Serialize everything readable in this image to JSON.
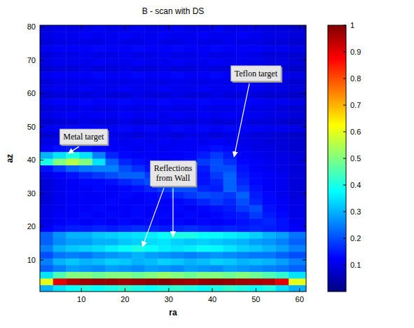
{
  "chart_data": {
    "type": "heatmap",
    "title": "B - scan with DS",
    "x_label": "ra",
    "y_label": "az",
    "xlim": [
      0.5,
      61.5
    ],
    "ylim": [
      0.5,
      80.5
    ],
    "xticks": [
      10,
      20,
      30,
      40,
      50,
      60
    ],
    "yticks": [
      10,
      20,
      30,
      40,
      50,
      60,
      70,
      80
    ],
    "x_edges": [
      0.5,
      3.5,
      6.5,
      9.5,
      12.5,
      15.5,
      18.5,
      21.5,
      24.5,
      27.5,
      30.5,
      33.5,
      36.5,
      39.5,
      42.5,
      45.5,
      48.5,
      51.5,
      54.5,
      57.5,
      61.5
    ],
    "y_edges": [
      0.5,
      2.5,
      4.5,
      6.5,
      8.5,
      10.5,
      12.5,
      14.5,
      16.5,
      18.5,
      20.5,
      22.5,
      24.5,
      26.5,
      28.5,
      30.5,
      32.5,
      34.5,
      36.5,
      38.5,
      40.5,
      42.5,
      44.5,
      46.5,
      48.5,
      50.5,
      52.5,
      54.5,
      56.5,
      58.5,
      60.5,
      62.5,
      64.5,
      66.5,
      68.5,
      70.5,
      72.5,
      74.5,
      76.5,
      78.5,
      80.5
    ],
    "cells": [
      [
        0.3,
        0.35,
        0.38,
        0.4,
        0.38,
        0.4,
        0.42,
        0.4,
        0.38,
        0.4,
        0.42,
        0.4,
        0.38,
        0.4,
        0.42,
        0.4,
        0.38,
        0.4,
        0.35,
        0.3
      ],
      [
        0.6,
        0.9,
        0.95,
        0.97,
        0.98,
        0.98,
        0.97,
        0.98,
        0.99,
        1,
        0.98,
        0.97,
        0.98,
        0.99,
        0.98,
        0.97,
        0.96,
        0.95,
        0.9,
        0.6
      ],
      [
        0.35,
        0.45,
        0.5,
        0.5,
        0.48,
        0.5,
        0.5,
        0.48,
        0.5,
        0.52,
        0.5,
        0.48,
        0.5,
        0.5,
        0.48,
        0.5,
        0.48,
        0.45,
        0.42,
        0.35
      ],
      [
        0.22,
        0.25,
        0.28,
        0.27,
        0.26,
        0.28,
        0.27,
        0.26,
        0.28,
        0.27,
        0.26,
        0.28,
        0.27,
        0.26,
        0.28,
        0.27,
        0.26,
        0.25,
        0.24,
        0.22
      ],
      [
        0.25,
        0.3,
        0.32,
        0.3,
        0.31,
        0.33,
        0.32,
        0.3,
        0.31,
        0.33,
        0.32,
        0.3,
        0.31,
        0.33,
        0.32,
        0.3,
        0.31,
        0.3,
        0.28,
        0.25
      ],
      [
        0.2,
        0.24,
        0.25,
        0.24,
        0.26,
        0.27,
        0.28,
        0.3,
        0.28,
        0.27,
        0.26,
        0.25,
        0.26,
        0.27,
        0.26,
        0.25,
        0.24,
        0.24,
        0.22,
        0.2
      ],
      [
        0.25,
        0.3,
        0.32,
        0.33,
        0.34,
        0.36,
        0.38,
        0.4,
        0.38,
        0.36,
        0.35,
        0.36,
        0.38,
        0.37,
        0.35,
        0.33,
        0.32,
        0.3,
        0.28,
        0.25
      ],
      [
        0.22,
        0.26,
        0.28,
        0.28,
        0.3,
        0.3,
        0.32,
        0.33,
        0.34,
        0.35,
        0.33,
        0.32,
        0.33,
        0.32,
        0.31,
        0.3,
        0.28,
        0.27,
        0.25,
        0.22
      ],
      [
        0.22,
        0.27,
        0.3,
        0.3,
        0.32,
        0.33,
        0.34,
        0.35,
        0.36,
        0.38,
        0.4,
        0.4,
        0.38,
        0.38,
        0.36,
        0.35,
        0.33,
        0.3,
        0.28,
        0.24
      ],
      [
        0.12,
        0.14,
        0.15,
        0.15,
        0.16,
        0.15,
        0.16,
        0.17,
        0.16,
        0.15,
        0.16,
        0.17,
        0.16,
        0.15,
        0.16,
        0.15,
        0.16,
        0.15,
        0.14,
        0.12
      ],
      [
        0.1,
        0.12,
        0.13,
        0.12,
        0.13,
        0.12,
        0.13,
        0.12,
        0.13,
        0.12,
        0.13,
        0.12,
        0.13,
        0.12,
        0.13,
        0.14,
        0.15,
        0.16,
        0.14,
        0.11
      ],
      [
        0.1,
        0.12,
        0.12,
        0.13,
        0.12,
        0.13,
        0.12,
        0.13,
        0.12,
        0.13,
        0.12,
        0.13,
        0.12,
        0.13,
        0.14,
        0.15,
        0.18,
        0.15,
        0.13,
        0.1
      ],
      [
        0.1,
        0.11,
        0.12,
        0.12,
        0.13,
        0.12,
        0.12,
        0.13,
        0.12,
        0.12,
        0.13,
        0.12,
        0.13,
        0.14,
        0.15,
        0.18,
        0.2,
        0.14,
        0.12,
        0.1
      ],
      [
        0.09,
        0.11,
        0.12,
        0.12,
        0.12,
        0.13,
        0.12,
        0.12,
        0.13,
        0.12,
        0.13,
        0.14,
        0.16,
        0.18,
        0.16,
        0.2,
        0.16,
        0.13,
        0.12,
        0.1
      ],
      [
        0.09,
        0.11,
        0.12,
        0.12,
        0.12,
        0.12,
        0.13,
        0.12,
        0.13,
        0.14,
        0.16,
        0.18,
        0.2,
        0.19,
        0.18,
        0.22,
        0.15,
        0.13,
        0.11,
        0.09
      ],
      [
        0.09,
        0.11,
        0.12,
        0.12,
        0.13,
        0.12,
        0.13,
        0.14,
        0.16,
        0.18,
        0.2,
        0.2,
        0.16,
        0.15,
        0.22,
        0.18,
        0.14,
        0.12,
        0.11,
        0.09
      ],
      [
        0.09,
        0.11,
        0.12,
        0.13,
        0.13,
        0.14,
        0.16,
        0.18,
        0.2,
        0.2,
        0.17,
        0.15,
        0.14,
        0.16,
        0.22,
        0.16,
        0.13,
        0.12,
        0.11,
        0.09
      ],
      [
        0.1,
        0.12,
        0.14,
        0.16,
        0.18,
        0.2,
        0.22,
        0.22,
        0.18,
        0.16,
        0.14,
        0.13,
        0.14,
        0.18,
        0.22,
        0.15,
        0.13,
        0.12,
        0.11,
        0.09
      ],
      [
        0.14,
        0.18,
        0.22,
        0.24,
        0.25,
        0.25,
        0.2,
        0.17,
        0.14,
        0.13,
        0.12,
        0.13,
        0.15,
        0.2,
        0.2,
        0.14,
        0.12,
        0.11,
        0.1,
        0.09
      ],
      [
        0.4,
        0.5,
        0.55,
        0.5,
        0.35,
        0.22,
        0.16,
        0.14,
        0.13,
        0.12,
        0.13,
        0.14,
        0.18,
        0.2,
        0.17,
        0.13,
        0.12,
        0.11,
        0.1,
        0.09
      ],
      [
        0.3,
        0.35,
        0.4,
        0.35,
        0.25,
        0.16,
        0.13,
        0.12,
        0.12,
        0.12,
        0.12,
        0.13,
        0.15,
        0.18,
        0.15,
        0.12,
        0.11,
        0.1,
        0.1,
        0.09
      ],
      [
        0.12,
        0.14,
        0.15,
        0.14,
        0.13,
        0.12,
        0.12,
        0.11,
        0.12,
        0.11,
        0.12,
        0.12,
        0.13,
        0.14,
        0.13,
        0.11,
        0.1,
        0.1,
        0.09,
        0.08
      ],
      [
        0.1,
        0.11,
        0.12,
        0.12,
        0.11,
        0.12,
        0.11,
        0.12,
        0.11,
        0.12,
        0.11,
        0.12,
        0.11,
        0.12,
        0.11,
        0.1,
        0.1,
        0.09,
        0.09,
        0.08
      ],
      [
        0.08,
        0.09,
        0.1,
        0.1,
        0.09,
        0.1,
        0.1,
        0.09,
        0.1,
        0.1,
        0.09,
        0.1,
        0.1,
        0.09,
        0.1,
        0.1,
        0.09,
        0.09,
        0.08,
        0.07
      ],
      [
        0.11,
        0.12,
        0.13,
        0.12,
        0.13,
        0.12,
        0.13,
        0.12,
        0.13,
        0.12,
        0.13,
        0.12,
        0.13,
        0.12,
        0.13,
        0.12,
        0.12,
        0.11,
        0.11,
        0.1
      ],
      [
        0.08,
        0.09,
        0.09,
        0.1,
        0.09,
        0.09,
        0.1,
        0.09,
        0.09,
        0.1,
        0.09,
        0.09,
        0.1,
        0.09,
        0.09,
        0.1,
        0.09,
        0.09,
        0.08,
        0.07
      ],
      [
        0.1,
        0.11,
        0.12,
        0.11,
        0.12,
        0.11,
        0.12,
        0.11,
        0.12,
        0.11,
        0.12,
        0.11,
        0.12,
        0.11,
        0.12,
        0.11,
        0.11,
        0.1,
        0.1,
        0.09
      ],
      [
        0.09,
        0.1,
        0.1,
        0.11,
        0.1,
        0.1,
        0.11,
        0.1,
        0.1,
        0.11,
        0.1,
        0.1,
        0.11,
        0.1,
        0.1,
        0.11,
        0.1,
        0.1,
        0.09,
        0.08
      ],
      [
        0.11,
        0.12,
        0.12,
        0.13,
        0.12,
        0.12,
        0.13,
        0.12,
        0.12,
        0.13,
        0.12,
        0.12,
        0.13,
        0.12,
        0.12,
        0.13,
        0.12,
        0.11,
        0.11,
        0.1
      ],
      [
        0.08,
        0.09,
        0.09,
        0.09,
        0.1,
        0.09,
        0.09,
        0.1,
        0.09,
        0.09,
        0.1,
        0.09,
        0.09,
        0.1,
        0.09,
        0.09,
        0.09,
        0.08,
        0.08,
        0.07
      ],
      [
        0.1,
        0.11,
        0.11,
        0.12,
        0.11,
        0.11,
        0.12,
        0.11,
        0.11,
        0.12,
        0.11,
        0.11,
        0.12,
        0.11,
        0.11,
        0.12,
        0.11,
        0.1,
        0.1,
        0.09
      ],
      [
        0.09,
        0.1,
        0.1,
        0.1,
        0.11,
        0.1,
        0.1,
        0.11,
        0.1,
        0.1,
        0.11,
        0.1,
        0.1,
        0.11,
        0.1,
        0.1,
        0.1,
        0.09,
        0.09,
        0.08
      ],
      [
        0.11,
        0.12,
        0.12,
        0.12,
        0.13,
        0.12,
        0.12,
        0.13,
        0.12,
        0.12,
        0.13,
        0.12,
        0.12,
        0.13,
        0.12,
        0.12,
        0.12,
        0.11,
        0.11,
        0.1
      ],
      [
        0.08,
        0.09,
        0.09,
        0.1,
        0.09,
        0.09,
        0.1,
        0.09,
        0.09,
        0.1,
        0.09,
        0.09,
        0.1,
        0.09,
        0.09,
        0.1,
        0.09,
        0.08,
        0.08,
        0.07
      ],
      [
        0.1,
        0.11,
        0.11,
        0.11,
        0.12,
        0.11,
        0.11,
        0.12,
        0.11,
        0.11,
        0.12,
        0.11,
        0.11,
        0.12,
        0.11,
        0.11,
        0.11,
        0.1,
        0.1,
        0.09
      ],
      [
        0.09,
        0.1,
        0.1,
        0.11,
        0.1,
        0.1,
        0.11,
        0.1,
        0.1,
        0.11,
        0.1,
        0.1,
        0.11,
        0.1,
        0.1,
        0.11,
        0.1,
        0.09,
        0.09,
        0.08
      ],
      [
        0.11,
        0.12,
        0.12,
        0.12,
        0.13,
        0.12,
        0.12,
        0.13,
        0.12,
        0.12,
        0.13,
        0.12,
        0.12,
        0.13,
        0.12,
        0.12,
        0.12,
        0.11,
        0.11,
        0.1
      ],
      [
        0.09,
        0.1,
        0.1,
        0.1,
        0.1,
        0.11,
        0.1,
        0.1,
        0.11,
        0.1,
        0.1,
        0.11,
        0.1,
        0.1,
        0.11,
        0.1,
        0.1,
        0.09,
        0.09,
        0.08
      ],
      [
        0.1,
        0.11,
        0.11,
        0.12,
        0.11,
        0.11,
        0.12,
        0.11,
        0.11,
        0.12,
        0.11,
        0.11,
        0.12,
        0.11,
        0.11,
        0.12,
        0.11,
        0.1,
        0.1,
        0.09
      ],
      [
        0.09,
        0.1,
        0.1,
        0.1,
        0.11,
        0.1,
        0.1,
        0.11,
        0.1,
        0.1,
        0.11,
        0.1,
        0.1,
        0.11,
        0.1,
        0.1,
        0.1,
        0.09,
        0.09,
        0.08
      ]
    ],
    "colorbar_range": [
      0,
      1
    ],
    "colorbar_ticks": [
      0.1,
      0.2,
      0.3,
      0.4,
      0.5,
      0.6,
      0.7,
      0.8,
      0.9,
      1
    ],
    "annotations": [
      {
        "text": "Metal target",
        "x": 10.5,
        "y": 47,
        "arrows": [
          [
            7,
            42
          ]
        ]
      },
      {
        "text": "Reflections from Wall",
        "x": 31,
        "y": 36,
        "arrows": [
          [
            24,
            14
          ],
          [
            31,
            17
          ]
        ]
      },
      {
        "text": "Teflon target",
        "x": 50,
        "y": 66,
        "arrows": [
          [
            45,
            41
          ]
        ]
      }
    ]
  }
}
